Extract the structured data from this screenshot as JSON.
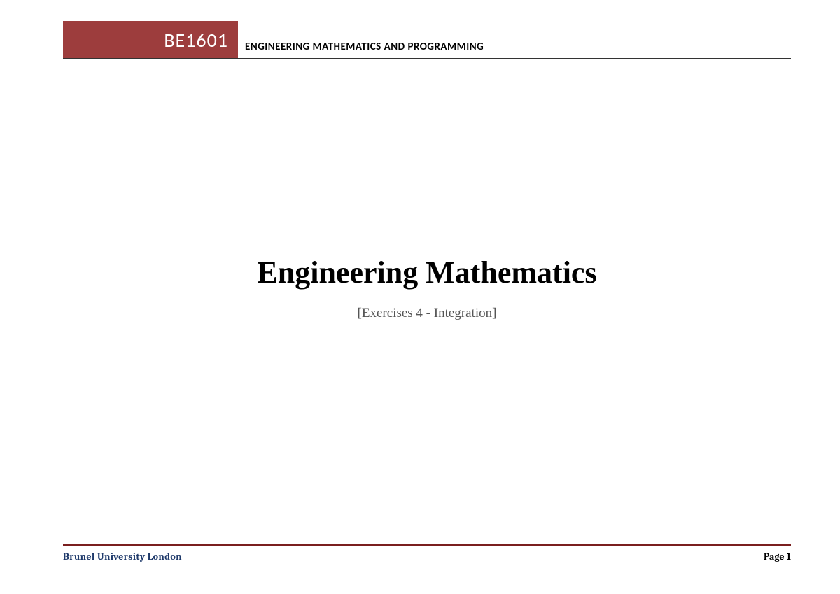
{
  "header": {
    "course_code": "BE1601",
    "course_title": "ENGINEERING MATHEMATICS AND PROGRAMMING",
    "badge_bg": "#9d3d3d",
    "badge_fg": "#ffffff"
  },
  "main": {
    "title": "Engineering Mathematics",
    "subtitle": "[Exercises 4 - Integration]"
  },
  "footer": {
    "university": "Brunel University London",
    "page_label": "Page 1",
    "rule_color": "#7a1f1f",
    "university_color": "#1f3a6b"
  }
}
